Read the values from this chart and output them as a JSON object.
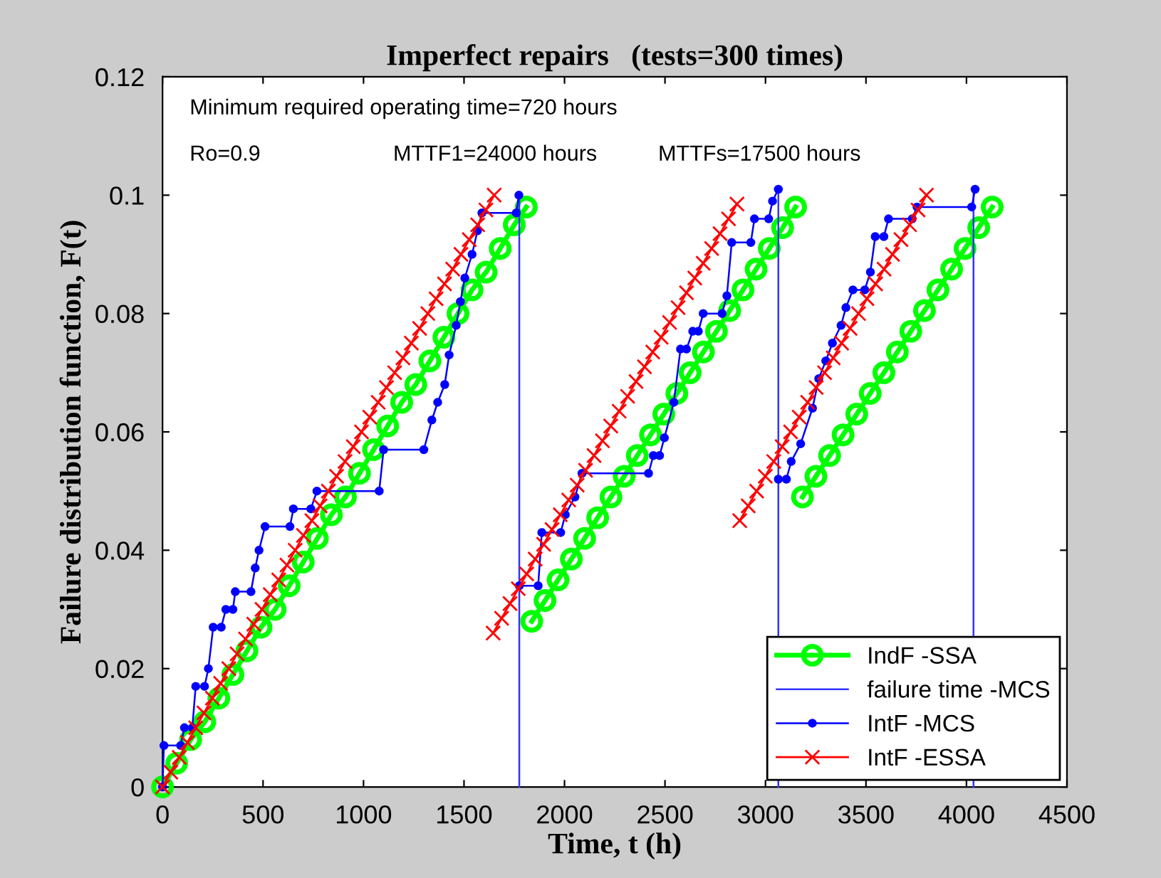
{
  "chart_data": {
    "type": "line",
    "title": "Imperfect repairs   (tests=300 times)",
    "xlabel": "Time, t (h)",
    "ylabel": "Failure distribution function, F(t)",
    "annotations": [
      "Minimum required operating time=720 hours",
      "Ro=0.9",
      "MTTF1=24000 hours",
      "MTTFs=17500 hours"
    ],
    "xlim": [
      0,
      4500
    ],
    "xticks": [
      0,
      500,
      1000,
      1500,
      2000,
      2500,
      3000,
      3500,
      4000,
      4500
    ],
    "ylim": [
      0,
      0.12
    ],
    "yticks": [
      0,
      0.02,
      0.04,
      0.06,
      0.08,
      0.1,
      0.12
    ],
    "grid": false,
    "legend": "bottom right",
    "line_style": "solid",
    "series": [
      {
        "name": "IndF -SSA",
        "color": "#00ff00",
        "marker": "circle",
        "x": [
          0,
          70,
          140,
          210,
          280,
          350,
          420,
          490,
          560,
          630,
          700,
          770,
          840,
          910,
          980,
          1050,
          1120,
          1190,
          1260,
          1330,
          1400,
          1470,
          1540,
          1610,
          1680,
          1750,
          1810,
          null,
          1837,
          1903,
          1968,
          2034,
          2100,
          2165,
          2231,
          2297,
          2362,
          2428,
          2494,
          2559,
          2625,
          2691,
          2756,
          2822,
          2888,
          2953,
          3019,
          3085,
          3150,
          null,
          3184,
          3251,
          3319,
          3386,
          3454,
          3521,
          3589,
          3656,
          3723,
          3791,
          3858,
          3926,
          3993,
          4061,
          4128
        ],
        "values": [
          0,
          0.004,
          0.008,
          0.011,
          0.015,
          0.019,
          0.023,
          0.027,
          0.03,
          0.034,
          0.038,
          0.042,
          0.046,
          0.049,
          0.053,
          0.057,
          0.061,
          0.065,
          0.068,
          0.072,
          0.076,
          0.08,
          0.084,
          0.087,
          0.091,
          0.095,
          0.098,
          null,
          0.028,
          0.0315,
          0.035,
          0.0385,
          0.042,
          0.0455,
          0.049,
          0.0525,
          0.056,
          0.0595,
          0.063,
          0.0665,
          0.07,
          0.0735,
          0.077,
          0.0805,
          0.084,
          0.0875,
          0.091,
          0.0945,
          0.098,
          null,
          0.049,
          0.0525,
          0.056,
          0.0595,
          0.063,
          0.0665,
          0.07,
          0.0735,
          0.077,
          0.0805,
          0.084,
          0.0875,
          0.091,
          0.0945,
          0.098
        ]
      },
      {
        "name": "failure time -MCS",
        "color": "#3333ff",
        "marker": "none",
        "x": [
          1775,
          1775,
          null,
          3064,
          3064,
          null,
          4035,
          4035
        ],
        "values": [
          0,
          0.1,
          null,
          0,
          0.101,
          null,
          0,
          0.101
        ]
      },
      {
        "name": "IntF -MCS",
        "color": "#0000ff",
        "marker": "circle",
        "x": [
          0,
          7,
          90,
          109,
          148,
          165,
          209,
          228,
          252,
          292,
          315,
          350,
          362,
          440,
          461,
          480,
          510,
          634,
          651,
          738,
          768,
          1078,
          1100,
          1300,
          1340,
          1369,
          1404,
          1426,
          1461,
          1482,
          1504,
          1540,
          1567,
          1589,
          1760,
          1773,
          null,
          1775,
          1869,
          1887,
          1981,
          2004,
          2052,
          2087,
          2418,
          2442,
          2473,
          2497,
          2544,
          2577,
          2607,
          2638,
          2666,
          2690,
          2784,
          2808,
          2832,
          2927,
          2945,
          3016,
          3035,
          3064,
          null,
          3064,
          3104,
          3128,
          3175,
          3234,
          3265,
          3300,
          3333,
          3376,
          3400,
          3435,
          3494,
          3522,
          3546,
          3589,
          3612,
          3730,
          3754,
          4026,
          4043
        ],
        "values": [
          0,
          0.007,
          0.007,
          0.01,
          0.01,
          0.017,
          0.017,
          0.02,
          0.027,
          0.027,
          0.03,
          0.03,
          0.033,
          0.033,
          0.037,
          0.04,
          0.044,
          0.044,
          0.047,
          0.047,
          0.05,
          0.05,
          0.057,
          0.057,
          0.062,
          0.065,
          0.068,
          0.073,
          0.078,
          0.082,
          0.086,
          0.09,
          0.094,
          0.097,
          0.097,
          0.1,
          null,
          0.034,
          0.034,
          0.043,
          0.043,
          0.046,
          0.049,
          0.053,
          0.053,
          0.056,
          0.056,
          0.059,
          0.065,
          0.074,
          0.074,
          0.077,
          0.077,
          0.08,
          0.08,
          0.083,
          0.092,
          0.092,
          0.096,
          0.096,
          0.099,
          0.101,
          null,
          0.052,
          0.052,
          0.055,
          0.058,
          0.064,
          0.069,
          0.072,
          0.075,
          0.078,
          0.081,
          0.084,
          0.084,
          0.087,
          0.093,
          0.093,
          0.096,
          0.096,
          0.098,
          0.098,
          0.101
        ]
      },
      {
        "name": "IntF -ESSA",
        "color": "#ff0000",
        "marker": "cross",
        "x": [
          0,
          41,
          83,
          124,
          165,
          206,
          248,
          289,
          330,
          371,
          413,
          454,
          495,
          536,
          578,
          619,
          660,
          701,
          743,
          784,
          825,
          866,
          908,
          949,
          990,
          1031,
          1073,
          1114,
          1155,
          1196,
          1238,
          1279,
          1320,
          1361,
          1403,
          1444,
          1485,
          1526,
          1568,
          1609,
          1650,
          null,
          1645,
          1687,
          1729,
          1770,
          1812,
          1854,
          1896,
          1938,
          1979,
          2021,
          2063,
          2105,
          2147,
          2189,
          2230,
          2272,
          2314,
          2356,
          2398,
          2439,
          2481,
          2523,
          2565,
          2607,
          2648,
          2690,
          2732,
          2774,
          2816,
          2858,
          null,
          2872,
          2914,
          2956,
          2999,
          3041,
          3083,
          3125,
          3168,
          3210,
          3252,
          3294,
          3337,
          3379,
          3421,
          3463,
          3505,
          3548,
          3590,
          3632,
          3674,
          3717,
          3759,
          3801
        ],
        "values": [
          0,
          0.0025,
          0.005,
          0.0075,
          0.01,
          0.0125,
          0.015,
          0.0175,
          0.02,
          0.0225,
          0.025,
          0.0275,
          0.03,
          0.0325,
          0.035,
          0.0375,
          0.04,
          0.0425,
          0.045,
          0.0475,
          0.05,
          0.0525,
          0.055,
          0.0575,
          0.06,
          0.0625,
          0.065,
          0.0675,
          0.07,
          0.0725,
          0.075,
          0.0775,
          0.08,
          0.0825,
          0.085,
          0.0875,
          0.09,
          0.0925,
          0.095,
          0.0975,
          0.1,
          null,
          0.026,
          0.0285,
          0.031,
          0.0335,
          0.036,
          0.0385,
          0.041,
          0.0435,
          0.046,
          0.0485,
          0.051,
          0.0535,
          0.056,
          0.0585,
          0.061,
          0.0635,
          0.066,
          0.0685,
          0.071,
          0.0735,
          0.076,
          0.0785,
          0.081,
          0.0835,
          0.086,
          0.0885,
          0.091,
          0.0935,
          0.096,
          0.0985,
          null,
          0.045,
          0.0475,
          0.05,
          0.0525,
          0.055,
          0.0575,
          0.06,
          0.0625,
          0.065,
          0.0675,
          0.07,
          0.0725,
          0.075,
          0.0775,
          0.08,
          0.0825,
          0.085,
          0.0875,
          0.09,
          0.0925,
          0.095,
          0.0975,
          0.1
        ]
      }
    ]
  }
}
